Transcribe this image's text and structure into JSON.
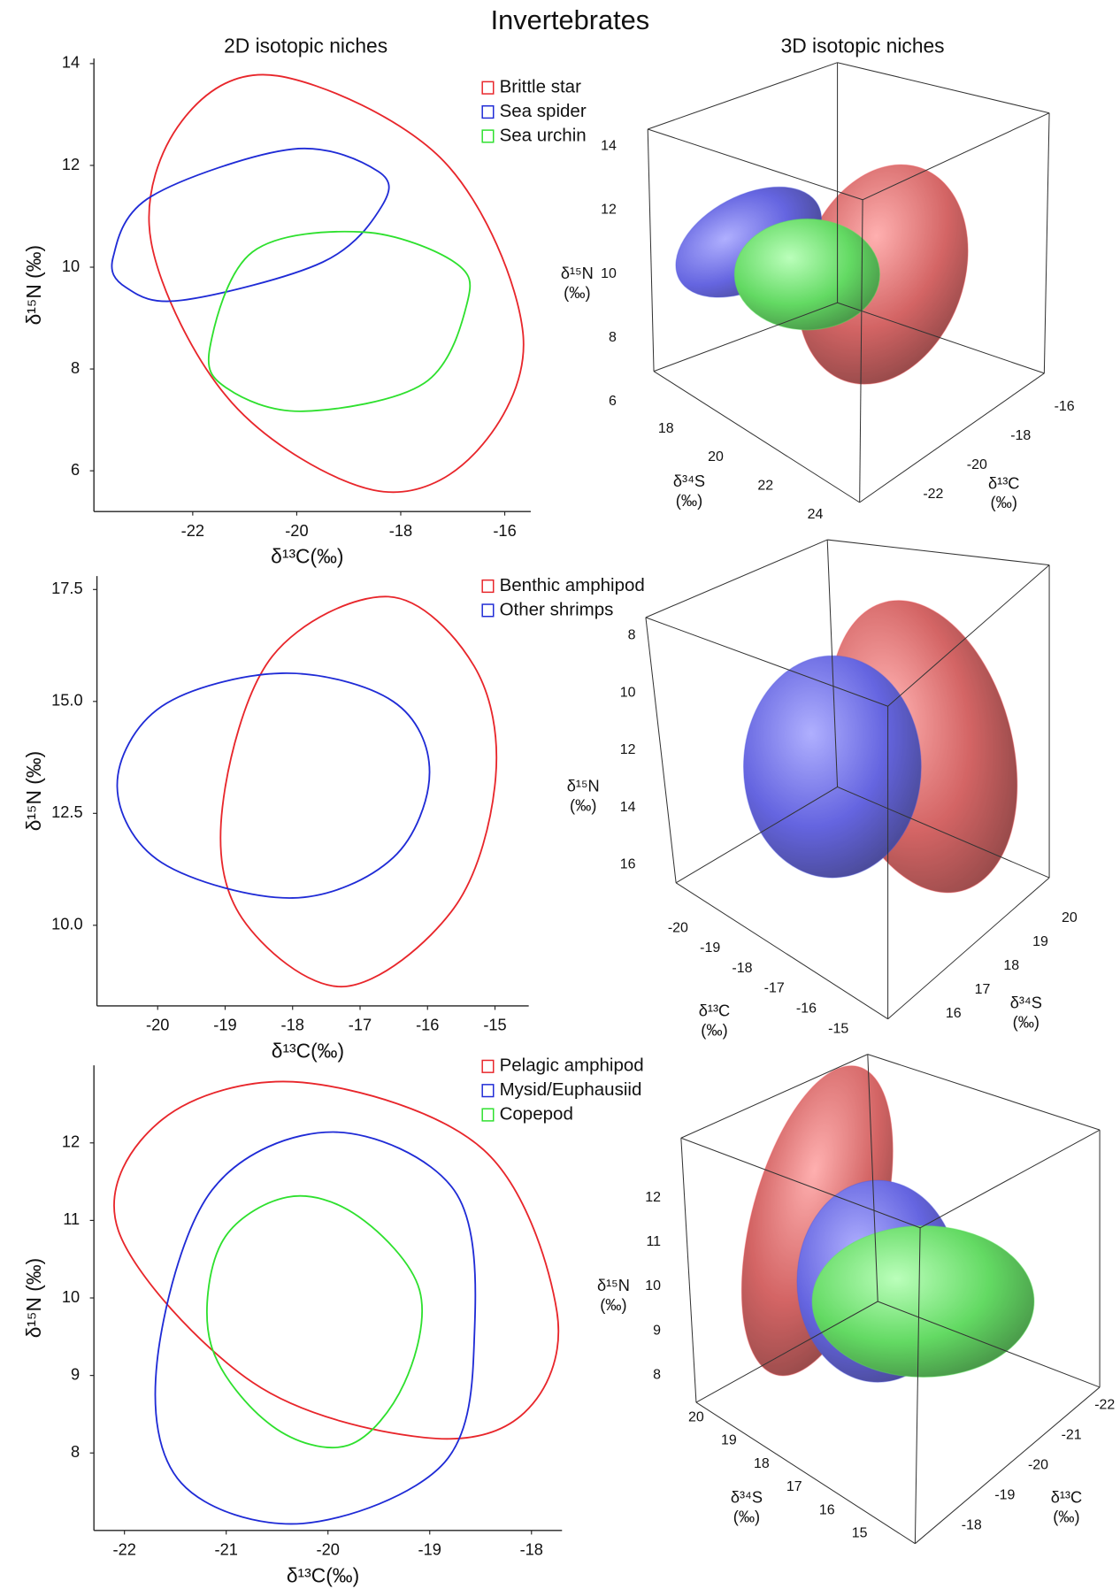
{
  "title": "Invertebrates",
  "chart_data": [
    {
      "type": "ellipse",
      "title": "2D isotopic niches",
      "xlabel": "δ¹³C(‰)",
      "ylabel": "δ¹⁵N (‰)",
      "xlim": [
        -23.9,
        -15.5
      ],
      "ylim": [
        5.2,
        14.1
      ],
      "xticks": [
        -22,
        -20,
        -18,
        -16
      ],
      "yticks": [
        6,
        8,
        10,
        12,
        14
      ],
      "series": [
        {
          "name": "Brittle star",
          "color": "#e8262b",
          "x": [
            -20.37,
            -17.17,
            -15.65,
            -16.58,
            -18.52,
            -21.24,
            -22.8,
            -22.21
          ],
          "values": [
            13.76,
            12.08,
            8.71,
            6.34,
            5.62,
            7.33,
            10.5,
            12.87
          ]
        },
        {
          "name": "Sea spider",
          "color": "#1f2bd6",
          "x": [
            -23.53,
            -22.8,
            -20.08,
            -18.43,
            -18.37,
            -19.5,
            -22.21,
            -23.28
          ],
          "values": [
            10.2,
            11.39,
            12.32,
            11.88,
            11.19,
            10.1,
            9.35,
            9.6
          ]
        },
        {
          "name": "Sea urchin",
          "color": "#2ee02e",
          "x": [
            -21.67,
            -20.85,
            -18.72,
            -16.97,
            -16.72,
            -17.55,
            -19.88,
            -21.34
          ],
          "values": [
            8.42,
            10.3,
            10.69,
            10.1,
            9.31,
            7.72,
            7.17,
            7.62
          ]
        }
      ]
    },
    {
      "type": "ellipsoid3d",
      "title": "3D isotopic niches",
      "xlabel": "δ¹³C (‰)",
      "ylabel": "δ³⁴S (‰)",
      "zlabel": "δ¹⁵N (‰)",
      "xticks": [
        -16,
        -18,
        -20,
        -22
      ],
      "yticks": [
        18,
        20,
        22,
        24
      ],
      "zticks": [
        14,
        12,
        10,
        8,
        6
      ]
    },
    {
      "type": "ellipse",
      "xlabel": "δ¹³C(‰)",
      "ylabel": "δ¹⁵N (‰)",
      "xlim": [
        -20.9,
        -14.5
      ],
      "ylim": [
        8.2,
        17.8
      ],
      "xticks": [
        -20,
        -19,
        -18,
        -17,
        -16,
        -15
      ],
      "yticks": [
        17.5,
        {
          "value": 15,
          "label": "15.0"
        },
        12.5,
        {
          "value": 10,
          "label": "10.0"
        }
      ],
      "series": [
        {
          "name": "Benthic amphipod",
          "color": "#e8262b",
          "x": [
            -16.58,
            -15.31,
            -14.99,
            -15.61,
            -17.25,
            -18.75,
            -19.04,
            -18.3
          ],
          "values": [
            17.34,
            15.79,
            13.31,
            10.38,
            8.63,
            10.16,
            12.64,
            16.01
          ]
        },
        {
          "name": "Other shrimps",
          "color": "#1f2bd6",
          "x": [
            -20.6,
            -19.94,
            -18.15,
            -16.51,
            -15.97,
            -16.51,
            -18.0,
            -19.94
          ],
          "values": [
            13.13,
            14.89,
            15.63,
            15.0,
            13.42,
            11.51,
            10.61,
            11.4
          ]
        }
      ]
    },
    {
      "type": "ellipsoid3d",
      "xlabel": "δ¹³C (‰)",
      "ylabel": "δ³⁴S (‰)",
      "zlabel": "δ¹⁵N (‰)",
      "xticks": [
        -20,
        -19,
        -18,
        -17,
        -16,
        -15
      ],
      "yticks": [
        20,
        19,
        18,
        17,
        16
      ],
      "zticks": [
        8,
        10,
        12,
        14,
        16
      ]
    },
    {
      "type": "ellipse",
      "xlabel": "δ¹³C(‰)",
      "ylabel": "δ¹⁵N (‰)",
      "xlim": [
        -22.3,
        -17.7
      ],
      "ylim": [
        7.0,
        13.0
      ],
      "xticks": [
        -22,
        -21,
        -20,
        -19,
        -18
      ],
      "yticks": [
        8,
        9,
        10,
        11,
        12
      ],
      "series": [
        {
          "name": "Pelagic amphipod",
          "color": "#e8262b",
          "x": [
            -20.25,
            -18.47,
            -17.75,
            -18.07,
            -19.06,
            -20.74,
            -22.06,
            -21.63
          ],
          "values": [
            12.78,
            11.91,
            9.82,
            8.52,
            8.2,
            8.91,
            10.87,
            12.3
          ]
        },
        {
          "name": "Mysid/Euphausiid",
          "color": "#1f2bd6",
          "x": [
            -19.95,
            -18.76,
            -18.56,
            -18.86,
            -20.25,
            -21.44,
            -21.68,
            -21.14
          ],
          "values": [
            12.14,
            11.39,
            9.56,
            7.87,
            7.09,
            7.61,
            9.17,
            11.39
          ]
        },
        {
          "name": "Copepod",
          "color": "#2ee02e",
          "x": [
            -20.4,
            -19.7,
            -19.1,
            -19.25,
            -19.8,
            -20.55,
            -21.15,
            -21.05
          ],
          "values": [
            11.3,
            11.05,
            10.1,
            8.9,
            8.1,
            8.35,
            9.4,
            10.7
          ]
        }
      ]
    },
    {
      "type": "ellipsoid3d",
      "xlabel": "δ¹³C (‰)",
      "ylabel": "δ³⁴S (‰)",
      "zlabel": "δ¹⁵N (‰)",
      "xticks": [
        -22,
        -21,
        -20,
        -19,
        -18
      ],
      "yticks": [
        20,
        19,
        18,
        17,
        16,
        15
      ],
      "zticks": [
        12,
        11,
        10,
        9,
        8
      ]
    }
  ]
}
